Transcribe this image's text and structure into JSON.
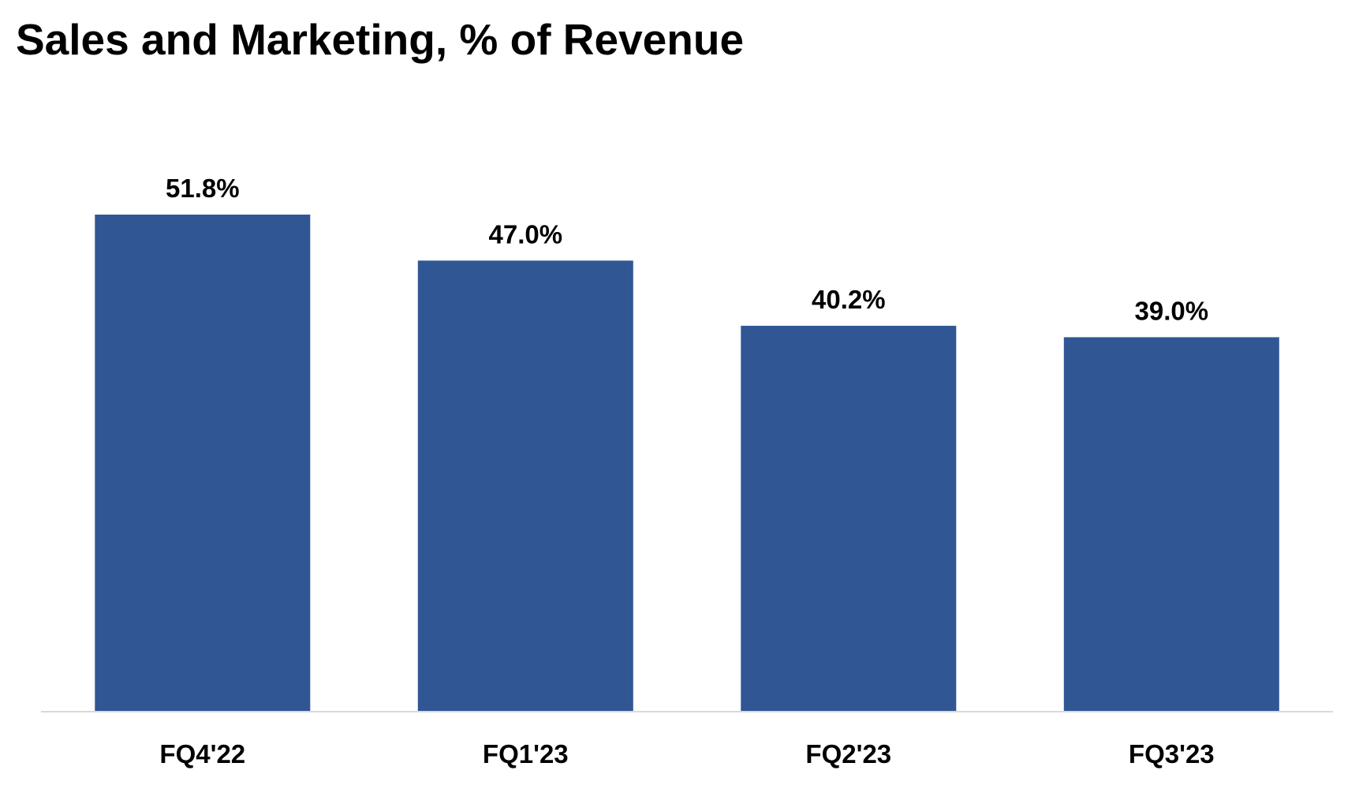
{
  "chart_data": {
    "type": "bar",
    "title": "Sales and Marketing, % of Revenue",
    "xlabel": "",
    "ylabel": "",
    "categories": [
      "FQ4'22",
      "FQ1'23",
      "FQ2'23",
      "FQ3'23"
    ],
    "values": [
      51.8,
      47.0,
      40.2,
      39.0
    ],
    "data_labels": [
      "51.8%",
      "47.0%",
      "40.2%",
      "39.0%"
    ],
    "ylim": [
      0,
      51.8
    ],
    "grid": false,
    "legend": "none",
    "colors": {
      "bar": "#305694",
      "axis": "#d9d9d9",
      "text": "#000000"
    }
  }
}
